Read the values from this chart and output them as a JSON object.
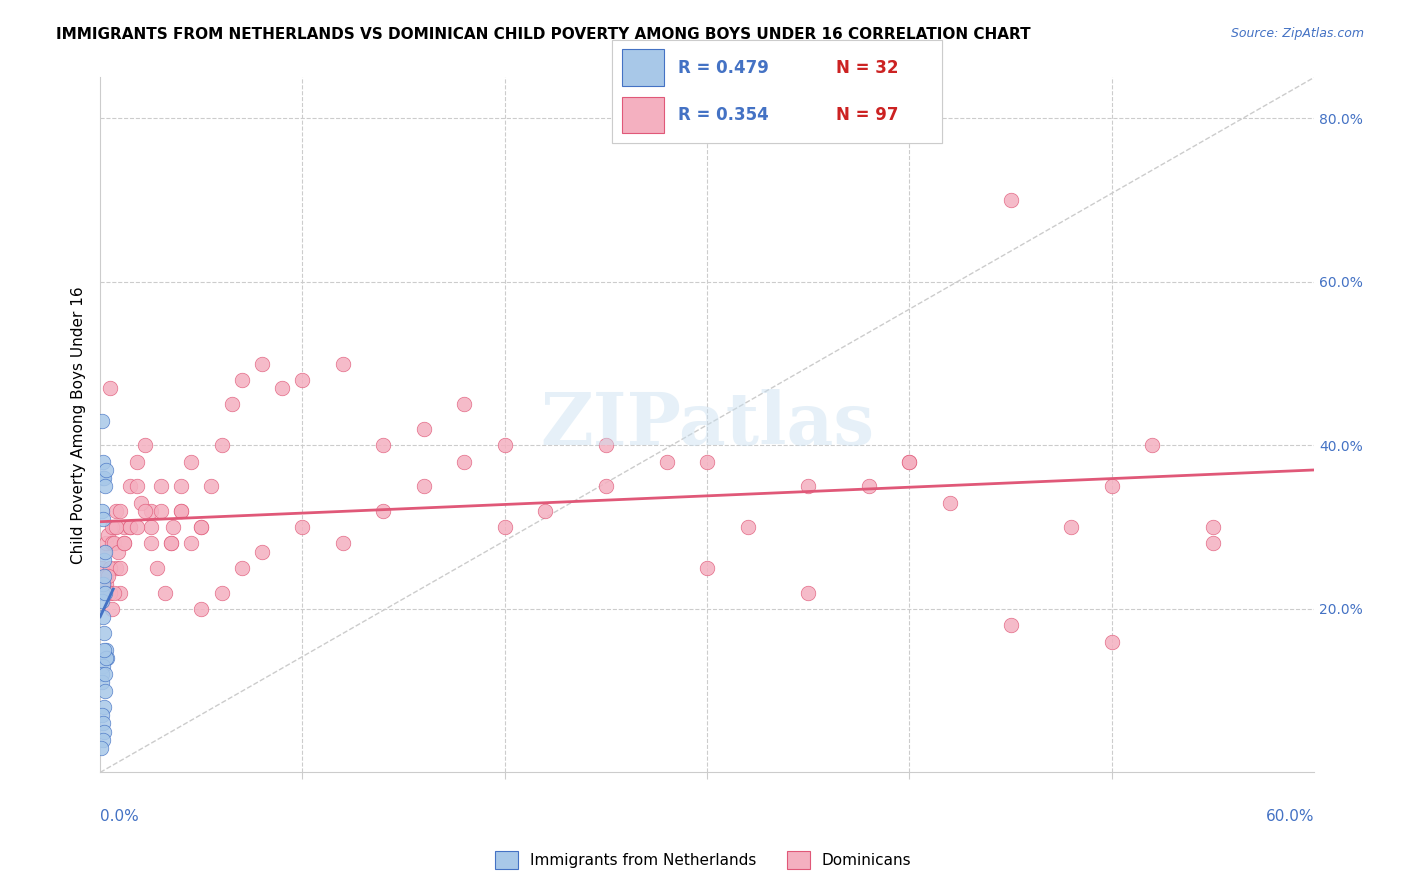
{
  "title": "IMMIGRANTS FROM NETHERLANDS VS DOMINICAN CHILD POVERTY AMONG BOYS UNDER 16 CORRELATION CHART",
  "source": "Source: ZipAtlas.com",
  "ylabel": "Child Poverty Among Boys Under 16",
  "blue_R": 0.479,
  "blue_N": 32,
  "pink_R": 0.354,
  "pink_N": 97,
  "blue_color": "#a8c8e8",
  "pink_color": "#f4b0c0",
  "blue_line_color": "#4472c4",
  "pink_line_color": "#e05878",
  "legend_label_blue": "Immigrants from Netherlands",
  "legend_label_pink": "Dominicans",
  "blue_scatter_x": [
    0.0008,
    0.0012,
    0.001,
    0.0018,
    0.0015,
    0.0025,
    0.003,
    0.002,
    0.0022,
    0.0014,
    0.0009,
    0.0016,
    0.001,
    0.0013,
    0.002,
    0.0028,
    0.0035,
    0.0022,
    0.0012,
    0.0008,
    0.0019,
    0.0011,
    0.0024,
    0.0017,
    0.0007,
    0.0013,
    0.003,
    0.0026,
    0.002,
    0.0015,
    0.0006,
    0.0018
  ],
  "blue_scatter_y": [
    0.43,
    0.36,
    0.32,
    0.36,
    0.38,
    0.35,
    0.37,
    0.26,
    0.27,
    0.31,
    0.22,
    0.23,
    0.21,
    0.19,
    0.17,
    0.15,
    0.14,
    0.22,
    0.13,
    0.12,
    0.24,
    0.11,
    0.1,
    0.08,
    0.07,
    0.06,
    0.14,
    0.12,
    0.05,
    0.04,
    0.03,
    0.15
  ],
  "pink_scatter_x": [
    0.001,
    0.002,
    0.003,
    0.004,
    0.005,
    0.006,
    0.007,
    0.008,
    0.01,
    0.012,
    0.015,
    0.018,
    0.022,
    0.025,
    0.03,
    0.035,
    0.04,
    0.045,
    0.05,
    0.055,
    0.06,
    0.065,
    0.07,
    0.08,
    0.09,
    0.1,
    0.12,
    0.14,
    0.16,
    0.18,
    0.2,
    0.22,
    0.25,
    0.28,
    0.3,
    0.32,
    0.35,
    0.38,
    0.4,
    0.42,
    0.45,
    0.48,
    0.5,
    0.52,
    0.55,
    0.002,
    0.003,
    0.004,
    0.005,
    0.006,
    0.007,
    0.008,
    0.009,
    0.01,
    0.012,
    0.015,
    0.018,
    0.02,
    0.025,
    0.03,
    0.035,
    0.04,
    0.05,
    0.06,
    0.07,
    0.08,
    0.1,
    0.12,
    0.14,
    0.16,
    0.18,
    0.2,
    0.25,
    0.3,
    0.35,
    0.4,
    0.45,
    0.5,
    0.55,
    0.003,
    0.004,
    0.005,
    0.006,
    0.007,
    0.008,
    0.01,
    0.012,
    0.015,
    0.018,
    0.022,
    0.025,
    0.028,
    0.032,
    0.036,
    0.04,
    0.045,
    0.05
  ],
  "pink_scatter_y": [
    0.25,
    0.27,
    0.28,
    0.29,
    0.47,
    0.28,
    0.3,
    0.25,
    0.22,
    0.3,
    0.35,
    0.38,
    0.4,
    0.32,
    0.35,
    0.28,
    0.32,
    0.38,
    0.3,
    0.35,
    0.4,
    0.45,
    0.48,
    0.5,
    0.47,
    0.48,
    0.5,
    0.4,
    0.42,
    0.45,
    0.3,
    0.32,
    0.4,
    0.38,
    0.25,
    0.3,
    0.22,
    0.35,
    0.38,
    0.33,
    0.7,
    0.3,
    0.35,
    0.4,
    0.28,
    0.23,
    0.24,
    0.22,
    0.25,
    0.3,
    0.28,
    0.32,
    0.27,
    0.25,
    0.28,
    0.3,
    0.35,
    0.33,
    0.3,
    0.32,
    0.28,
    0.35,
    0.2,
    0.22,
    0.25,
    0.27,
    0.3,
    0.28,
    0.32,
    0.35,
    0.38,
    0.4,
    0.35,
    0.38,
    0.35,
    0.38,
    0.18,
    0.16,
    0.3,
    0.23,
    0.24,
    0.22,
    0.2,
    0.22,
    0.3,
    0.32,
    0.28,
    0.3,
    0.3,
    0.32,
    0.28,
    0.25,
    0.22,
    0.3,
    0.32,
    0.28,
    0.3
  ],
  "xlim": [
    0.0,
    0.6
  ],
  "ylim": [
    0.0,
    0.85
  ],
  "watermark": "ZIPatlas",
  "title_fontsize": 11,
  "source_fontsize": 9,
  "tick_fontsize": 10
}
